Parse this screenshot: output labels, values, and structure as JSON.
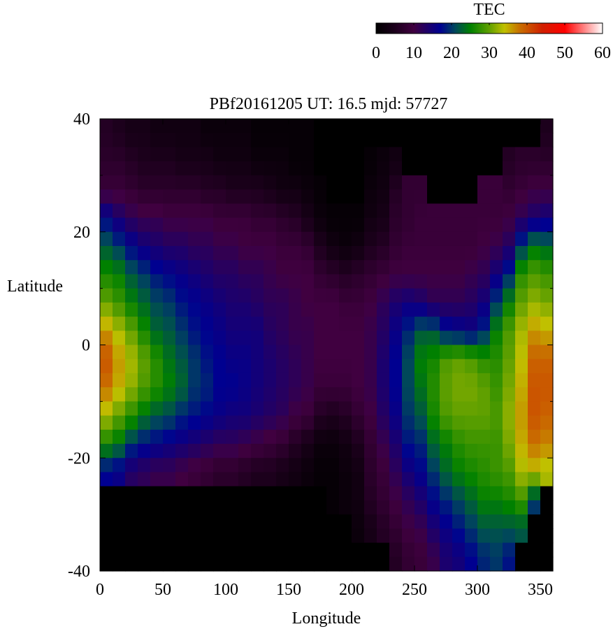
{
  "chart_data": {
    "type": "heatmap",
    "title": "PBf20161205  UT: 16.5  mjd: 57727",
    "xlabel": "Longitude",
    "ylabel": "Latitude",
    "xlim": [
      0,
      360
    ],
    "ylim": [
      -40,
      40
    ],
    "xticks": [
      "0",
      "50",
      "100",
      "150",
      "200",
      "250",
      "300",
      "350"
    ],
    "yticks": [
      "40",
      "20",
      "0",
      "-20",
      "-40"
    ],
    "colorbar": {
      "label": "TEC",
      "range": [
        0,
        60
      ],
      "ticks": [
        "0",
        "10",
        "20",
        "30",
        "40",
        "50",
        "60"
      ],
      "colormap": [
        [
          0,
          "#000000"
        ],
        [
          5,
          "#1c001c"
        ],
        [
          10,
          "#400040"
        ],
        [
          17,
          "#000090"
        ],
        [
          21,
          "#00485a"
        ],
        [
          25,
          "#008000"
        ],
        [
          30,
          "#60a000"
        ],
        [
          34,
          "#c0c000"
        ],
        [
          38,
          "#c87000"
        ],
        [
          44,
          "#d02000"
        ],
        [
          50,
          "#ff0000"
        ],
        [
          60,
          "#ffffff"
        ]
      ]
    },
    "lon_centers": [
      5,
      15,
      25,
      35,
      45,
      55,
      65,
      75,
      85,
      95,
      105,
      115,
      125,
      135,
      145,
      155,
      165,
      175,
      185,
      195,
      205,
      215,
      225,
      235,
      245,
      255,
      265,
      275,
      285,
      295,
      305,
      315,
      325,
      335,
      345,
      355
    ],
    "lat_centers": [
      37.5,
      32.5,
      27.5,
      22.5,
      17.5,
      12.5,
      7.5,
      2.5,
      -2.5,
      -7.5,
      -12.5,
      -17.5,
      -22.5,
      -27.5,
      -32.5,
      -37.5
    ],
    "values_by_lon": [
      [
        6,
        7,
        9,
        17,
        22,
        26,
        30,
        36,
        40,
        38,
        33,
        26,
        17,
        0,
        0,
        0
      ],
      [
        5,
        7,
        9,
        14,
        20,
        25,
        28,
        33,
        36,
        35,
        30,
        24,
        16,
        0,
        0,
        0
      ],
      [
        4,
        6,
        8,
        12,
        17,
        22,
        25,
        30,
        33,
        32,
        27,
        20,
        13,
        0,
        0,
        0
      ],
      [
        4,
        5,
        7,
        11,
        15,
        20,
        23,
        26,
        30,
        29,
        24,
        18,
        12,
        0,
        0,
        0
      ],
      [
        3,
        5,
        7,
        11,
        14,
        18,
        21,
        23,
        27,
        27,
        22,
        17,
        11,
        0,
        0,
        0
      ],
      [
        3,
        5,
        7,
        10,
        13,
        17,
        20,
        22,
        24,
        25,
        21,
        16,
        11,
        0,
        0,
        0
      ],
      [
        3,
        4,
        7,
        10,
        13,
        16,
        18,
        20,
        22,
        23,
        19,
        15,
        10,
        0,
        0,
        0
      ],
      [
        3,
        4,
        7,
        10,
        12,
        15,
        17,
        18,
        20,
        20,
        18,
        14,
        9,
        0,
        0,
        0
      ],
      [
        2,
        4,
        6,
        10,
        12,
        14,
        16,
        17,
        18,
        19,
        17,
        13,
        8,
        0,
        0,
        0
      ],
      [
        2,
        3,
        6,
        9,
        11,
        13,
        15,
        16,
        17,
        17,
        16,
        12,
        7,
        0,
        0,
        0
      ],
      [
        2,
        3,
        5,
        9,
        11,
        13,
        14,
        15,
        16,
        17,
        15,
        12,
        7,
        0,
        0,
        0
      ],
      [
        2,
        3,
        5,
        9,
        10,
        12,
        14,
        15,
        16,
        16,
        15,
        11,
        6,
        0,
        0,
        0
      ],
      [
        1,
        2,
        5,
        8,
        10,
        12,
        13,
        15,
        15,
        15,
        14,
        10,
        5,
        0,
        0,
        0
      ],
      [
        1,
        2,
        4,
        8,
        10,
        11,
        12,
        13,
        14,
        14,
        13,
        9,
        5,
        0,
        0,
        0
      ],
      [
        1,
        2,
        3,
        7,
        9,
        10,
        12,
        12,
        13,
        13,
        12,
        8,
        4,
        0,
        0,
        0
      ],
      [
        1,
        1,
        3,
        6,
        9,
        10,
        11,
        11,
        12,
        12,
        10,
        6,
        3,
        0,
        0,
        0
      ],
      [
        1,
        1,
        2,
        4,
        8,
        10,
        10,
        11,
        11,
        11,
        9,
        4,
        2,
        0,
        0,
        0
      ],
      [
        0,
        0,
        1,
        2,
        5,
        8,
        10,
        10,
        10,
        9,
        6,
        2,
        1,
        0,
        0,
        0
      ],
      [
        0,
        0,
        0,
        1,
        3,
        7,
        10,
        10,
        10,
        9,
        5,
        2,
        1,
        1,
        0,
        0
      ],
      [
        0,
        0,
        0,
        1,
        2,
        6,
        9,
        10,
        10,
        9,
        6,
        3,
        2,
        2,
        0,
        0
      ],
      [
        0,
        0,
        0,
        1,
        3,
        7,
        9,
        10,
        10,
        10,
        8,
        5,
        3,
        3,
        2,
        0
      ],
      [
        0,
        1,
        2,
        3,
        5,
        8,
        10,
        11,
        11,
        11,
        10,
        8,
        7,
        6,
        4,
        0
      ],
      [
        0,
        2,
        3,
        4,
        6,
        9,
        12,
        13,
        14,
        14,
        13,
        11,
        9,
        8,
        6,
        0
      ],
      [
        0,
        3,
        6,
        7,
        8,
        10,
        14,
        16,
        17,
        17,
        16,
        14,
        12,
        10,
        8,
        6
      ],
      [
        0,
        0,
        8,
        8,
        9,
        10,
        15,
        19,
        21,
        21,
        20,
        18,
        15,
        12,
        10,
        8
      ],
      [
        0,
        0,
        8,
        9,
        9,
        10,
        14,
        22,
        25,
        24,
        22,
        19,
        17,
        14,
        11,
        9
      ],
      [
        0,
        0,
        0,
        9,
        9,
        10,
        12,
        22,
        26,
        27,
        26,
        23,
        20,
        17,
        14,
        11
      ],
      [
        0,
        0,
        0,
        9,
        9,
        10,
        12,
        18,
        29,
        30,
        29,
        25,
        23,
        19,
        16,
        14
      ],
      [
        0,
        0,
        0,
        9,
        9,
        10,
        12,
        17,
        30,
        31,
        30,
        27,
        25,
        21,
        18,
        15
      ],
      [
        0,
        0,
        0,
        9,
        9,
        11,
        13,
        16,
        29,
        31,
        30,
        28,
        26,
        23,
        20,
        17
      ],
      [
        0,
        0,
        9,
        9,
        10,
        12,
        15,
        19,
        27,
        30,
        30,
        28,
        27,
        25,
        22,
        19
      ],
      [
        0,
        0,
        9,
        9,
        11,
        15,
        20,
        25,
        27,
        28,
        29,
        28,
        28,
        25,
        22,
        20
      ],
      [
        0,
        6,
        8,
        10,
        13,
        19,
        25,
        29,
        30,
        31,
        32,
        31,
        29,
        26,
        22,
        18
      ],
      [
        0,
        7,
        9,
        12,
        20,
        27,
        30,
        33,
        34,
        35,
        36,
        35,
        33,
        28,
        22,
        0
      ],
      [
        0,
        7,
        10,
        14,
        24,
        29,
        32,
        36,
        39,
        40,
        40,
        38,
        34,
        20,
        0,
        0
      ],
      [
        5,
        7,
        10,
        15,
        23,
        28,
        31,
        35,
        39,
        40,
        39,
        37,
        33,
        0,
        0,
        0
      ]
    ]
  }
}
